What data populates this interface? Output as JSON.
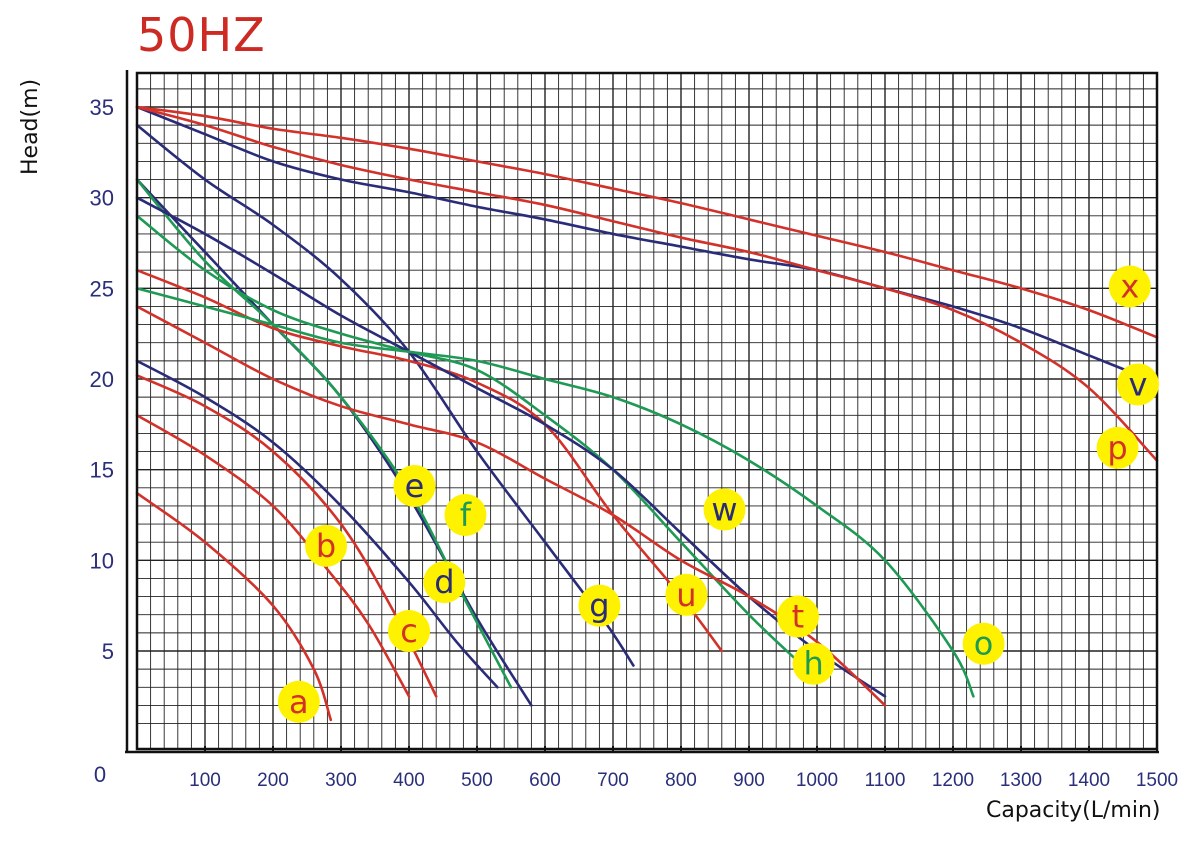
{
  "header": {
    "title": "50HZ"
  },
  "chart_data": {
    "type": "line",
    "title": "50HZ",
    "xlabel": "Capacity(L/min)",
    "ylabel": "Head(m)",
    "xlim": [
      0,
      1500
    ],
    "ylim": [
      0,
      36
    ],
    "x_ticks": [
      100,
      200,
      300,
      400,
      500,
      600,
      700,
      800,
      900,
      1000,
      1100,
      1200,
      1300,
      1400,
      1500
    ],
    "y_ticks": [
      5,
      10,
      15,
      20,
      25,
      30,
      35
    ],
    "origin_label": "0",
    "grid": true,
    "colors": {
      "red": "#d2322a",
      "navy": "#2a2c78",
      "green": "#1f9a55",
      "badge": "#fff200",
      "axis_text": "#2a2f7a"
    },
    "series": [
      {
        "label": "a",
        "color": "red",
        "points": [
          [
            0,
            13.7
          ],
          [
            100,
            11
          ],
          [
            200,
            7.5
          ],
          [
            260,
            4
          ],
          [
            285,
            1.2
          ]
        ]
      },
      {
        "label": "b",
        "color": "red",
        "points": [
          [
            0,
            18
          ],
          [
            100,
            15.8
          ],
          [
            200,
            13
          ],
          [
            280,
            9.5
          ],
          [
            340,
            6.5
          ],
          [
            400,
            2.5
          ]
        ]
      },
      {
        "label": "c",
        "color": "red",
        "points": [
          [
            0,
            20.2
          ],
          [
            100,
            18.5
          ],
          [
            200,
            16
          ],
          [
            300,
            12
          ],
          [
            380,
            7
          ],
          [
            440,
            2.5
          ]
        ]
      },
      {
        "label": "d",
        "color": "navy",
        "points": [
          [
            0,
            21
          ],
          [
            100,
            19
          ],
          [
            200,
            16.5
          ],
          [
            300,
            13
          ],
          [
            400,
            8.8
          ],
          [
            470,
            5.5
          ],
          [
            530,
            3
          ]
        ]
      },
      {
        "label": "e",
        "color": "navy",
        "points": [
          [
            0,
            31
          ],
          [
            100,
            27
          ],
          [
            200,
            23
          ],
          [
            300,
            19
          ],
          [
            400,
            13.5
          ],
          [
            500,
            6.8
          ],
          [
            580,
            2
          ]
        ]
      },
      {
        "label": "f",
        "color": "green",
        "points": [
          [
            0,
            31
          ],
          [
            100,
            26.5
          ],
          [
            200,
            23
          ],
          [
            300,
            19
          ],
          [
            400,
            13.8
          ],
          [
            480,
            8
          ],
          [
            550,
            3
          ]
        ]
      },
      {
        "label": "g",
        "color": "navy",
        "points": [
          [
            0,
            34
          ],
          [
            100,
            31
          ],
          [
            200,
            28.5
          ],
          [
            300,
            25.5
          ],
          [
            400,
            21.5
          ],
          [
            500,
            16
          ],
          [
            600,
            11
          ],
          [
            690,
            6.5
          ],
          [
            730,
            4.2
          ]
        ]
      },
      {
        "label": "h",
        "color": "green",
        "points": [
          [
            0,
            29
          ],
          [
            100,
            26
          ],
          [
            200,
            23.8
          ],
          [
            300,
            22.5
          ],
          [
            400,
            21.5
          ],
          [
            500,
            20.5
          ],
          [
            600,
            18
          ],
          [
            700,
            15
          ],
          [
            800,
            11
          ],
          [
            900,
            7
          ],
          [
            970,
            4.5
          ]
        ]
      },
      {
        "label": "u",
        "color": "red",
        "points": [
          [
            0,
            26
          ],
          [
            100,
            24.5
          ],
          [
            200,
            22.8
          ],
          [
            300,
            21.8
          ],
          [
            400,
            21
          ],
          [
            500,
            19.8
          ],
          [
            600,
            17.5
          ],
          [
            700,
            12.5
          ],
          [
            800,
            8
          ],
          [
            860,
            5
          ]
        ]
      },
      {
        "label": "w",
        "color": "navy",
        "points": [
          [
            0,
            30
          ],
          [
            100,
            28
          ],
          [
            200,
            25.8
          ],
          [
            300,
            23.5
          ],
          [
            400,
            21.5
          ],
          [
            500,
            19.5
          ],
          [
            600,
            17.5
          ],
          [
            700,
            15
          ],
          [
            800,
            11.5
          ],
          [
            900,
            8
          ],
          [
            1000,
            5
          ],
          [
            1100,
            2.5
          ]
        ]
      },
      {
        "label": "t",
        "color": "red",
        "points": [
          [
            0,
            24
          ],
          [
            100,
            22
          ],
          [
            200,
            20
          ],
          [
            300,
            18.5
          ],
          [
            400,
            17.5
          ],
          [
            500,
            16.5
          ],
          [
            600,
            14.5
          ],
          [
            700,
            12.5
          ],
          [
            800,
            10
          ],
          [
            900,
            8
          ],
          [
            1000,
            5.5
          ],
          [
            1100,
            2
          ]
        ]
      },
      {
        "label": "o",
        "color": "green",
        "points": [
          [
            0,
            25
          ],
          [
            100,
            24
          ],
          [
            200,
            23
          ],
          [
            300,
            22
          ],
          [
            400,
            21.5
          ],
          [
            500,
            21
          ],
          [
            600,
            20
          ],
          [
            700,
            19
          ],
          [
            800,
            17.5
          ],
          [
            900,
            15.5
          ],
          [
            1000,
            13
          ],
          [
            1100,
            10
          ],
          [
            1200,
            5
          ],
          [
            1230,
            2.5
          ]
        ]
      },
      {
        "label": "v",
        "color": "navy",
        "points": [
          [
            0,
            35
          ],
          [
            100,
            33.5
          ],
          [
            200,
            32
          ],
          [
            300,
            31
          ],
          [
            400,
            30.3
          ],
          [
            500,
            29.5
          ],
          [
            600,
            28.8
          ],
          [
            700,
            28
          ],
          [
            800,
            27.3
          ],
          [
            900,
            26.6
          ],
          [
            1000,
            26
          ],
          [
            1100,
            25
          ],
          [
            1200,
            24
          ],
          [
            1300,
            22.8
          ],
          [
            1400,
            21.3
          ],
          [
            1500,
            19.8
          ]
        ]
      },
      {
        "label": "p",
        "color": "red",
        "points": [
          [
            0,
            35
          ],
          [
            100,
            34
          ],
          [
            200,
            32.8
          ],
          [
            300,
            31.8
          ],
          [
            400,
            31
          ],
          [
            500,
            30.3
          ],
          [
            600,
            29.6
          ],
          [
            700,
            28.7
          ],
          [
            800,
            27.8
          ],
          [
            900,
            27
          ],
          [
            1000,
            26
          ],
          [
            1100,
            25
          ],
          [
            1200,
            23.8
          ],
          [
            1300,
            22
          ],
          [
            1400,
            19.5
          ],
          [
            1500,
            15.5
          ]
        ]
      },
      {
        "label": "x",
        "color": "red",
        "points": [
          [
            0,
            35
          ],
          [
            100,
            34.5
          ],
          [
            200,
            33.8
          ],
          [
            300,
            33.3
          ],
          [
            400,
            32.7
          ],
          [
            500,
            32
          ],
          [
            600,
            31.3
          ],
          [
            700,
            30.5
          ],
          [
            800,
            29.7
          ],
          [
            900,
            28.8
          ],
          [
            1000,
            27.9
          ],
          [
            1100,
            27
          ],
          [
            1200,
            26
          ],
          [
            1300,
            25
          ],
          [
            1400,
            23.8
          ],
          [
            1500,
            22.3
          ]
        ]
      }
    ],
    "curve_labels": [
      {
        "text": "a",
        "x": 238,
        "y": 2.2,
        "text_color": "red"
      },
      {
        "text": "b",
        "x": 278,
        "y": 10.8,
        "text_color": "red"
      },
      {
        "text": "c",
        "x": 400,
        "y": 6.1,
        "text_color": "red"
      },
      {
        "text": "d",
        "x": 452,
        "y": 8.8,
        "text_color": "navy"
      },
      {
        "text": "e",
        "x": 408,
        "y": 14.1,
        "text_color": "navy"
      },
      {
        "text": "f",
        "x": 483,
        "y": 12.5,
        "text_color": "green"
      },
      {
        "text": "g",
        "x": 680,
        "y": 7.5,
        "text_color": "navy"
      },
      {
        "text": "u",
        "x": 808,
        "y": 8.1,
        "text_color": "red"
      },
      {
        "text": "w",
        "x": 864,
        "y": 12.8,
        "text_color": "navy"
      },
      {
        "text": "t",
        "x": 972,
        "y": 6.9,
        "text_color": "red"
      },
      {
        "text": "h",
        "x": 995,
        "y": 4.3,
        "text_color": "green"
      },
      {
        "text": "o",
        "x": 1245,
        "y": 5.4,
        "text_color": "green"
      },
      {
        "text": "x",
        "x": 1460,
        "y": 25.1,
        "text_color": "red"
      },
      {
        "text": "v",
        "x": 1472,
        "y": 19.7,
        "text_color": "navy"
      },
      {
        "text": "p",
        "x": 1442,
        "y": 16.2,
        "text_color": "red"
      }
    ]
  }
}
